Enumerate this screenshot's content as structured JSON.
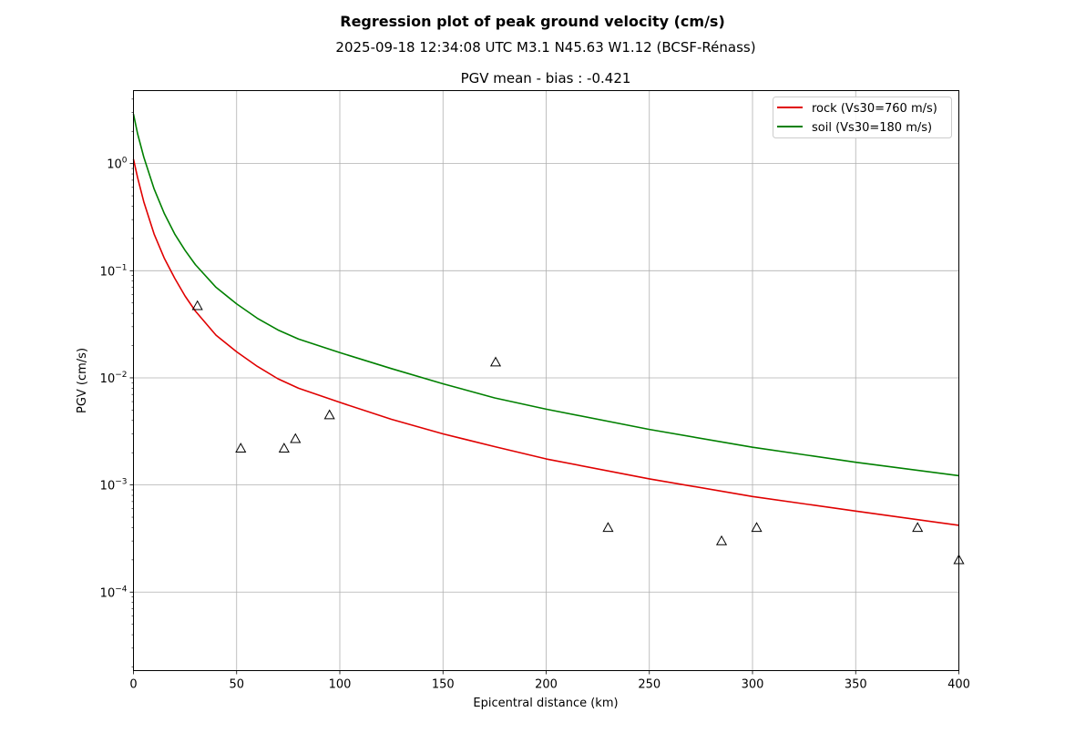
{
  "chart_data": {
    "type": "line",
    "title": "Regression plot of peak ground velocity (cm/s)",
    "subtitle": "2025-09-18 12:34:08 UTC M3.1 N45.63 W1.12 (BCSF-Rénass)",
    "axes_title": "PGV mean - bias : -0.421",
    "xlabel": "Epicentral distance (km)",
    "ylabel": "PGV (cm/s)",
    "xlim": [
      0,
      400
    ],
    "ylim": [
      1.85e-05,
      4.8
    ],
    "yscale": "log",
    "grid": true,
    "legend_position": "top-right",
    "x_ticks": [
      {
        "value": 0,
        "label": "0"
      },
      {
        "value": 50,
        "label": "50"
      },
      {
        "value": 100,
        "label": "100"
      },
      {
        "value": 150,
        "label": "150"
      },
      {
        "value": 200,
        "label": "200"
      },
      {
        "value": 250,
        "label": "250"
      },
      {
        "value": 300,
        "label": "300"
      },
      {
        "value": 350,
        "label": "350"
      },
      {
        "value": 400,
        "label": "400"
      }
    ],
    "y_ticks": [
      {
        "value": 1,
        "base": "10",
        "exp": "0"
      },
      {
        "value": 0.1,
        "base": "10",
        "exp": "−1"
      },
      {
        "value": 0.01,
        "base": "10",
        "exp": "−2"
      },
      {
        "value": 0.001,
        "base": "10",
        "exp": "−3"
      },
      {
        "value": 0.0001,
        "base": "10",
        "exp": "−4"
      }
    ],
    "series": [
      {
        "name": "rock (Vs30=760 m/s)",
        "color": "#e00000",
        "x": [
          0,
          2,
          5,
          10,
          15,
          20,
          25,
          30,
          40,
          50,
          60,
          70,
          80,
          100,
          125,
          150,
          175,
          200,
          250,
          300,
          350,
          400
        ],
        "y": [
          1.1,
          0.74,
          0.44,
          0.22,
          0.13,
          0.085,
          0.058,
          0.042,
          0.025,
          0.0175,
          0.0128,
          0.0098,
          0.008,
          0.0059,
          0.0041,
          0.003,
          0.00228,
          0.00175,
          0.00114,
          0.00078,
          0.00057,
          0.00042
        ]
      },
      {
        "name": "soil (Vs30=180 m/s)",
        "color": "#008000",
        "x": [
          0,
          2,
          5,
          10,
          15,
          20,
          25,
          30,
          40,
          50,
          60,
          70,
          80,
          100,
          125,
          150,
          175,
          200,
          250,
          300,
          350,
          400
        ],
        "y": [
          2.9,
          1.9,
          1.15,
          0.58,
          0.34,
          0.22,
          0.155,
          0.114,
          0.07,
          0.049,
          0.036,
          0.028,
          0.023,
          0.0172,
          0.0122,
          0.0088,
          0.0065,
          0.0051,
          0.0033,
          0.00225,
          0.00163,
          0.00122
        ]
      }
    ],
    "observations": {
      "marker": "triangle",
      "x": [
        31,
        52,
        73,
        78.5,
        95,
        175.5,
        230,
        285,
        302,
        380,
        400
      ],
      "y": [
        0.047,
        0.0022,
        0.0022,
        0.0027,
        0.0045,
        0.014,
        0.0004,
        0.0003,
        0.0004,
        0.0004,
        0.0002
      ]
    }
  }
}
